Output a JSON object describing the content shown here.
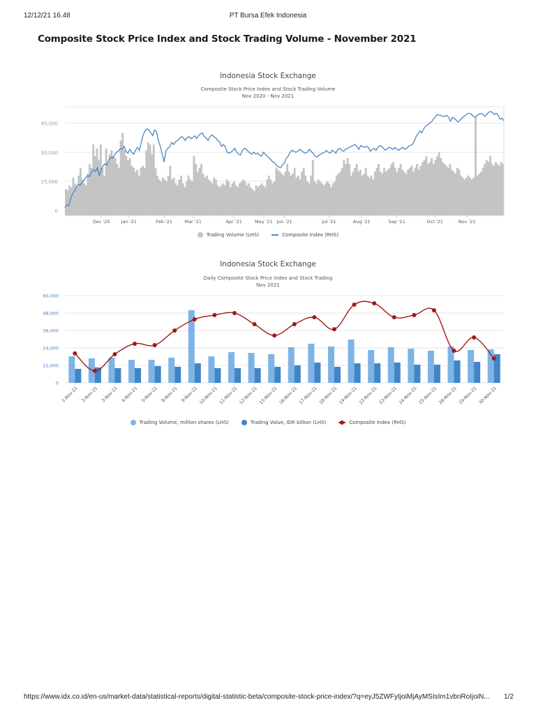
{
  "print_header": {
    "datetime": "12/12/21 16.48",
    "site_title": "PT Bursa Efek Indonesia"
  },
  "page": {
    "title": "Composite Stock Price Index and Stock Trading Volume - November 2021"
  },
  "print_footer": {
    "url": "https://www.idx.co.id/en-us/market-data/statistical-reports/digital-statistic-beta/composite-stock-price-index/?q=eyJ5ZWFyIjoiMjAyMSIsIm1vbnRoIjoiN...",
    "page_number": "1/2"
  },
  "colors": {
    "volume_gray": "#c4c4c4",
    "index_blue": "#4a86c5",
    "bar_light_blue": "#7eb3e6",
    "bar_dark_blue": "#3f85c8",
    "index_red": "#a01818",
    "grid": "#e6e6e6",
    "axis_label_gray": "#9a9a9a",
    "axis_label_blue": "#4a7fc0"
  },
  "chart_data": [
    {
      "type": "bar+line",
      "title": "Indonesia Stock Exchange",
      "subtitle": "Composite Stock Price Index and Stock Trading Volume",
      "period": "Nov 2020 - Nov 2021",
      "xlabel": "",
      "ylabel": "",
      "ylim": [
        0,
        52000
      ],
      "y_ticks": [
        "0",
        "15,000",
        "30,000",
        "45,000"
      ],
      "y_tick_values": [
        0,
        15000,
        30000,
        45000
      ],
      "x_ticks": [
        "Dec '20",
        "Jan '21",
        "Feb '21",
        "Mar '21",
        "Apr '21",
        "May '21",
        "Jun '21",
        "Jul '21",
        "Aug '21",
        "Sep '21",
        "Oct '21",
        "Nov '21"
      ],
      "x_tick_positions": [
        0.083,
        0.146,
        0.226,
        0.292,
        0.385,
        0.453,
        0.5,
        0.602,
        0.676,
        0.756,
        0.843,
        0.916
      ],
      "legend": [
        "Trading Volume (LHS)",
        "Composite Index (RHS)"
      ],
      "legend_position": "bottom",
      "grid": true,
      "series": [
        {
          "name": "Trading Volume (LHS)",
          "kind": "bar",
          "values": [
            11000,
            10500,
            13000,
            12000,
            17000,
            14000,
            12000,
            18000,
            22000,
            16000,
            14000,
            13000,
            19000,
            24000,
            22000,
            34000,
            28000,
            32000,
            26000,
            34000,
            22000,
            18000,
            32000,
            25000,
            29000,
            31000,
            28000,
            27000,
            24000,
            22000,
            36000,
            40000,
            31000,
            28000,
            26000,
            27000,
            23000,
            22000,
            20000,
            21000,
            18000,
            22000,
            23000,
            22000,
            31000,
            35000,
            34000,
            29000,
            34000,
            22000,
            18000,
            16000,
            15000,
            17000,
            16000,
            15000,
            18000,
            23000,
            16000,
            17000,
            14000,
            13000,
            16000,
            18000,
            14000,
            12000,
            15000,
            18000,
            16000,
            15000,
            28000,
            24000,
            20000,
            22000,
            24000,
            19000,
            17000,
            18000,
            16000,
            15000,
            14000,
            17000,
            16000,
            13000,
            12000,
            13000,
            14000,
            13000,
            16000,
            15000,
            12000,
            14000,
            15000,
            13000,
            12000,
            14000,
            15000,
            16000,
            15000,
            13000,
            14000,
            12000,
            11000,
            10000,
            13000,
            12000,
            13000,
            14000,
            13000,
            12000,
            16000,
            18000,
            16000,
            14000,
            15000,
            22000,
            21000,
            20000,
            19000,
            18000,
            20000,
            24000,
            20000,
            18000,
            19000,
            22000,
            17000,
            18000,
            16000,
            20000,
            22000,
            18000,
            15000,
            14000,
            18000,
            26000,
            15000,
            14000,
            16000,
            15000,
            14000,
            13000,
            14000,
            15000,
            14000,
            12000,
            14000,
            15000,
            18000,
            19000,
            20000,
            22000,
            26000,
            24000,
            27000,
            24000,
            18000,
            20000,
            22000,
            24000,
            20000,
            21000,
            18000,
            19000,
            22000,
            18000,
            17000,
            18000,
            16000,
            20000,
            22000,
            24000,
            20000,
            19000,
            22000,
            20000,
            21000,
            22000,
            24000,
            25000,
            22000,
            20000,
            22000,
            24000,
            21000,
            20000,
            19000,
            21000,
            22000,
            23000,
            20000,
            22000,
            24000,
            21000,
            23000,
            25000,
            26000,
            28000,
            24000,
            25000,
            27000,
            24000,
            26000,
            28000,
            30000,
            27000,
            25000,
            24000,
            23000,
            22000,
            24000,
            21000,
            20000,
            19000,
            22000,
            21000,
            18000,
            17000,
            16000,
            17000,
            18000,
            17000,
            16000,
            17000,
            48000,
            18000,
            19000,
            20000,
            22000,
            24000,
            26000,
            25000,
            28000,
            24000,
            23000,
            25000,
            24000,
            23000,
            25000,
            24000
          ],
          "unit": "index-scaled"
        },
        {
          "name": "Composite Index (RHS)",
          "kind": "line",
          "values": [
            1500,
            3000,
            2500,
            6000,
            8500,
            10000,
            12000,
            13500,
            13000,
            14500,
            15500,
            17000,
            18000,
            17500,
            20000,
            21000,
            20000,
            22000,
            18000,
            21000,
            23000,
            24000,
            23500,
            26000,
            27500,
            27000,
            28500,
            30000,
            30500,
            32000,
            31500,
            33000,
            30500,
            29500,
            31500,
            30000,
            29000,
            31000,
            32500,
            31000,
            35000,
            39000,
            41000,
            42000,
            41500,
            40000,
            38500,
            41500,
            40500,
            36000,
            33000,
            29000,
            25000,
            31000,
            32000,
            33000,
            35000,
            34000,
            35500,
            36000,
            37000,
            38000,
            37500,
            36000,
            37500,
            38000,
            37000,
            37500,
            38500,
            37000,
            38500,
            39500,
            40000,
            38000,
            37500,
            36000,
            38000,
            39000,
            38000,
            37500,
            36000,
            35500,
            33000,
            34000,
            33000,
            30000,
            29500,
            30000,
            31000,
            32000,
            30000,
            29000,
            28500,
            31000,
            32000,
            31500,
            30500,
            29500,
            29000,
            30000,
            29000,
            29500,
            28500,
            28000,
            30000,
            29000,
            28000,
            27000,
            26000,
            25000,
            24500,
            23000,
            22500,
            22000,
            23500,
            24500,
            27000,
            28000,
            30000,
            31000,
            30500,
            30000,
            30500,
            31500,
            31000,
            30000,
            29500,
            30000,
            31500,
            30500,
            29500,
            28000,
            27500,
            28500,
            29000,
            29500,
            30000,
            31000,
            30000,
            29500,
            31000,
            30500,
            29500,
            31500,
            32000,
            31000,
            30500,
            31500,
            32000,
            32500,
            33000,
            33500,
            34000,
            33000,
            31500,
            33500,
            33000,
            32500,
            33000,
            32500,
            30500,
            31500,
            32000,
            31000,
            32500,
            33500,
            33000,
            32000,
            31000,
            32000,
            32500,
            32000,
            31500,
            32500,
            31500,
            31000,
            32000,
            32500,
            31500,
            32000,
            33000,
            33500,
            34000,
            35500,
            38000,
            39500,
            41000,
            40000,
            42000,
            43500,
            44000,
            45000,
            45500,
            47000,
            48000,
            49500,
            49000,
            49000,
            48500,
            48500,
            49000,
            48000,
            46000,
            48000,
            47500,
            46500,
            45500,
            46500,
            47500,
            48500,
            49000,
            50000,
            50000,
            49500,
            48500,
            48000,
            49000,
            49500,
            50000,
            49500,
            48500,
            49500,
            50500,
            51000,
            50500,
            49500,
            50000,
            49000,
            47000,
            47500,
            46000
          ],
          "unit": "index"
        }
      ]
    },
    {
      "type": "bar+line",
      "title": "Indonesia Stock Exchange",
      "subtitle": "Daily Composite Stock Price Index and Stock Trading",
      "period": "Nov 2021",
      "xlabel": "",
      "ylabel": "",
      "ylim": [
        0,
        60000
      ],
      "y_ticks": [
        "0",
        "12,000",
        "24,000",
        "36,000",
        "48,000",
        "60,000"
      ],
      "y_tick_values": [
        0,
        12000,
        24000,
        36000,
        48000,
        60000
      ],
      "categories": [
        "1-Nov-21",
        "2-Nov-21",
        "3-Nov-21",
        "4-Nov-21",
        "5-Nov-21",
        "8-Nov-21",
        "9-Nov-21",
        "10-Nov-21",
        "11-Nov-21",
        "12-Nov-21",
        "15-Nov-21",
        "16-Nov-21",
        "17-Nov-21",
        "18-Nov-21",
        "19-Nov-21",
        "22-Nov-21",
        "23-Nov-21",
        "24-Nov-21",
        "25-Nov-21",
        "26-Nov-21",
        "29-Nov-21",
        "30-Nov-21"
      ],
      "legend": [
        "Trading Volume, million shares (LHS)",
        "Trading Value, IDR billion (LHS)",
        "Composite Index (RHS)"
      ],
      "legend_position": "bottom",
      "grid": true,
      "series": [
        {
          "name": "Trading Volume, million shares (LHS)",
          "kind": "bar",
          "values": [
            18200,
            16800,
            17300,
            15800,
            15800,
            17300,
            50000,
            18200,
            21100,
            20600,
            19700,
            24500,
            26900,
            25000,
            29800,
            22600,
            24500,
            23500,
            22100,
            25000,
            22600,
            23000
          ]
        },
        {
          "name": "Trading Value, IDR billion (LHS)",
          "kind": "bar",
          "values": [
            9600,
            10600,
            10100,
            10100,
            11500,
            11000,
            13400,
            10100,
            10100,
            10100,
            11000,
            12000,
            13900,
            11000,
            13400,
            13400,
            13900,
            12500,
            12500,
            15400,
            14400,
            19700
          ]
        },
        {
          "name": "Composite Index (RHS)",
          "kind": "line",
          "values": [
            20200,
            8200,
            19700,
            26900,
            25900,
            36000,
            43700,
            46600,
            48000,
            40300,
            32600,
            40300,
            45100,
            36900,
            53800,
            54700,
            45100,
            46600,
            49900,
            22100,
            31200,
            16800
          ]
        }
      ]
    }
  ]
}
